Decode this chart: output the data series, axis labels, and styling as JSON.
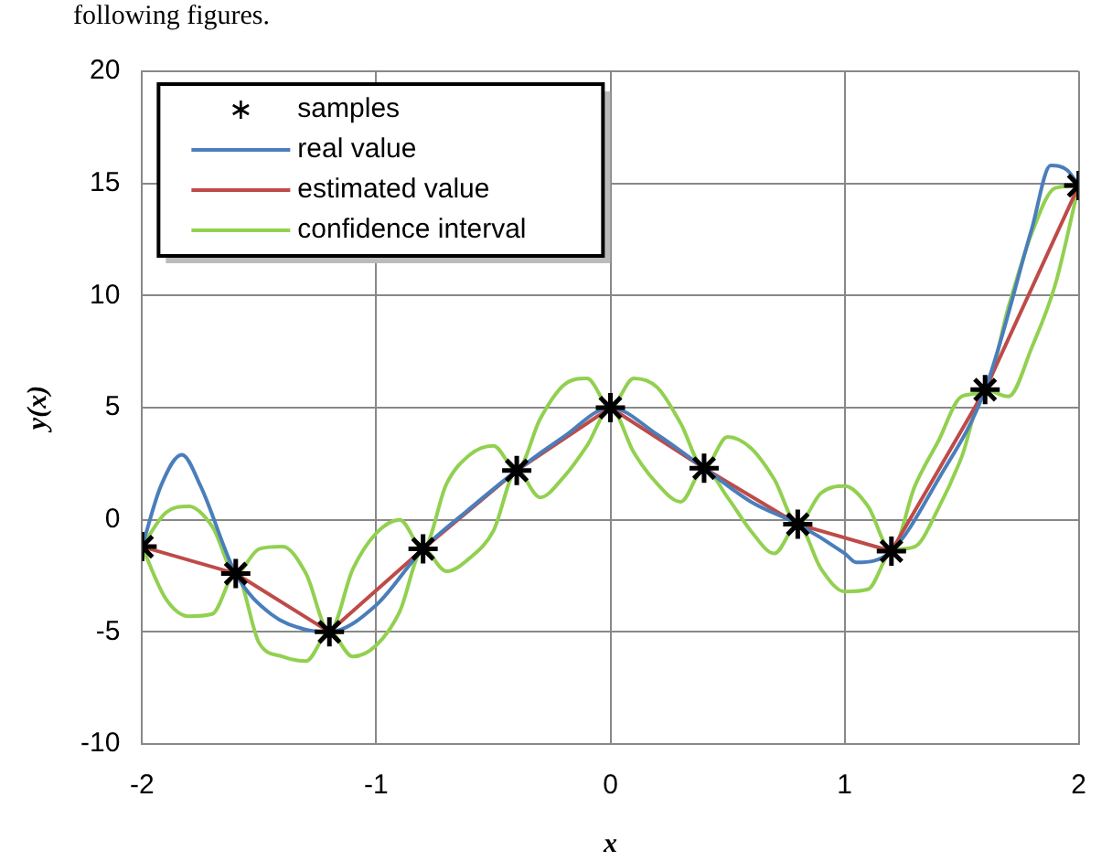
{
  "chart_data": {
    "type": "line",
    "xlabel": "x",
    "ylabel": "y(x)",
    "annotations": [
      "following figures."
    ],
    "xlim": [
      -2,
      2
    ],
    "xticks": [
      -2,
      -1,
      0,
      1,
      2
    ],
    "ylim": [
      -10,
      20
    ],
    "yticks": [
      -10,
      -5,
      0,
      5,
      10,
      15,
      20
    ],
    "grid": true,
    "legend": "top left",
    "series": [
      {
        "name": "samples",
        "type": "scatter",
        "marker": "cross",
        "color": "#000000",
        "x": [
          -2,
          -1.6,
          -1.2,
          -0.8,
          -0.4,
          0,
          0.4,
          0.8,
          1.2,
          1.6,
          2
        ],
        "values": [
          -1.2,
          -2.4,
          -5,
          -1.3,
          2.2,
          5,
          2.3,
          -0.2,
          -1.4,
          5.8,
          14.9
        ]
      },
      {
        "name": "real value",
        "marker": "none",
        "color": "#4a7ebb",
        "x": [
          -2,
          -1.92,
          -1.83,
          -1.75,
          -1.6,
          -1.45,
          -1.3,
          -1.2,
          -1.0,
          -0.8,
          -0.6,
          -0.4,
          -0.2,
          0,
          0.2,
          0.4,
          0.6,
          0.8,
          1.0,
          1.05,
          1.2,
          1.4,
          1.6,
          1.8,
          1.88,
          1.95,
          2
        ],
        "values": [
          -1.2,
          1.5,
          2.9,
          1.5,
          -2.4,
          -4.2,
          -4.9,
          -5,
          -3.8,
          -1.3,
          0.5,
          2.2,
          3.7,
          5,
          3.8,
          2.3,
          0.8,
          -0.2,
          -1.5,
          -1.9,
          -1.4,
          1.8,
          5.8,
          13,
          15.8,
          15.6,
          14.9
        ]
      },
      {
        "name": "estimated value",
        "marker": "none",
        "color": "#be4b48",
        "x": [
          -2,
          -1.6,
          -1.2,
          -0.8,
          -0.4,
          0,
          0.4,
          0.8,
          1.2,
          1.6,
          2
        ],
        "values": [
          -1.2,
          -2.4,
          -5,
          -1.3,
          2.2,
          5,
          2.3,
          -0.2,
          -1.4,
          5.8,
          14.9
        ]
      },
      {
        "name": "confidence interval",
        "marker": "none",
        "color": "#92d050",
        "x": [
          -2,
          -1.9,
          -1.8,
          -1.7,
          -1.6,
          -1.5,
          -1.4,
          -1.3,
          -1.2,
          -1.1,
          -1.0,
          -0.9,
          -0.8,
          -0.7,
          -0.6,
          -0.5,
          -0.4,
          -0.3,
          -0.2,
          -0.1,
          0,
          0.1,
          0.2,
          0.3,
          0.4,
          0.5,
          0.6,
          0.7,
          0.8,
          0.9,
          1.0,
          1.1,
          1.2,
          1.3,
          1.4,
          1.5,
          1.6,
          1.7,
          1.8,
          1.9,
          2
        ],
        "values": [
          -1.2,
          0.3,
          0.6,
          -0.3,
          -2.4,
          -1.3,
          -1.2,
          -2.4,
          -5,
          -2.2,
          -0.6,
          0,
          -1.3,
          1.6,
          2.9,
          3.3,
          2.2,
          4.5,
          6.0,
          6.3,
          5,
          6.3,
          5.9,
          4.3,
          2.3,
          3.7,
          3.2,
          1.8,
          -0.2,
          1.2,
          1.5,
          0.6,
          -1.4,
          1.5,
          3.5,
          5.5,
          5.8,
          9.5,
          12.8,
          14.8,
          14.9
        ]
      },
      {
        "marker": "none",
        "color": "#92d050",
        "x": [
          -2,
          -1.9,
          -1.8,
          -1.7,
          -1.6,
          -1.5,
          -1.4,
          -1.3,
          -1.2,
          -1.1,
          -1.0,
          -0.9,
          -0.8,
          -0.7,
          -0.6,
          -0.5,
          -0.4,
          -0.3,
          -0.2,
          -0.1,
          0,
          0.1,
          0.2,
          0.3,
          0.4,
          0.5,
          0.6,
          0.7,
          0.8,
          0.9,
          1.0,
          1.1,
          1.2,
          1.3,
          1.4,
          1.5,
          1.6,
          1.7,
          1.8,
          1.9,
          2
        ],
        "values": [
          -1.2,
          -3.5,
          -4.3,
          -4.2,
          -2.4,
          -5.5,
          -6.1,
          -6.3,
          -5,
          -6.1,
          -5.6,
          -4.1,
          -1.3,
          -2.3,
          -1.7,
          -0.5,
          2.2,
          1.0,
          1.9,
          3.3,
          5,
          3.0,
          1.6,
          0.8,
          2.3,
          1.0,
          -0.5,
          -1.5,
          -0.2,
          -2.2,
          -3.2,
          -3.1,
          -1.4,
          -1.2,
          0.5,
          2.8,
          5.8,
          5.5,
          7.7,
          10.5,
          14.9
        ]
      }
    ]
  }
}
